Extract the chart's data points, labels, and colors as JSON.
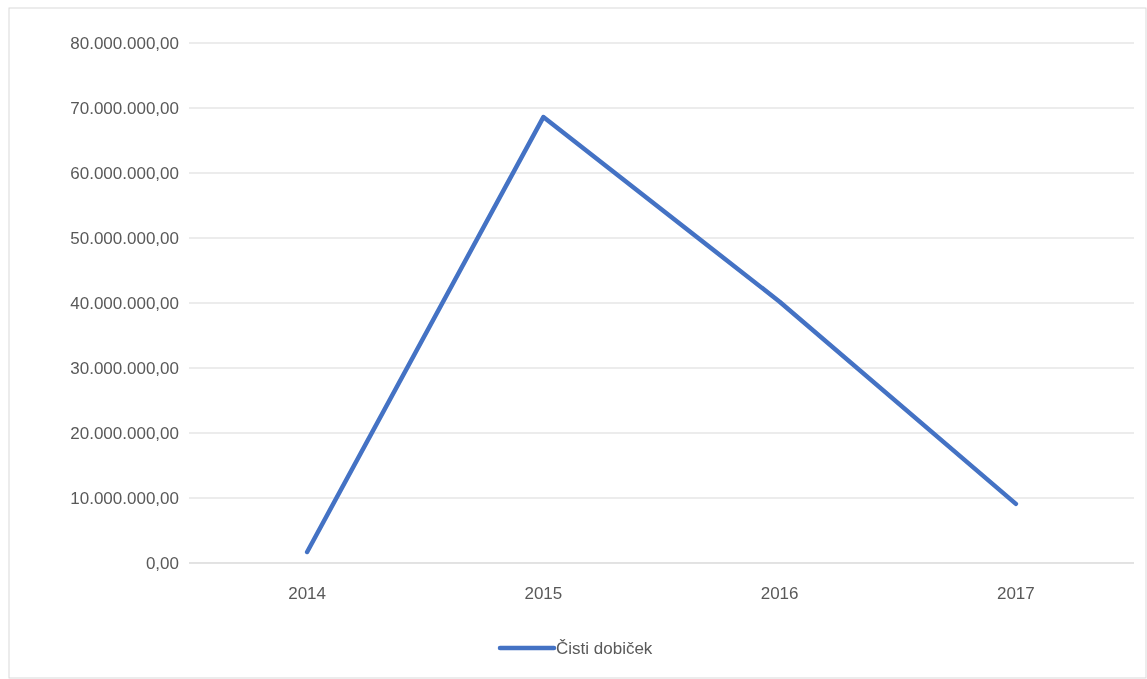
{
  "chart_data": {
    "type": "line",
    "categories": [
      "2014",
      "2015",
      "2016",
      "2017"
    ],
    "series": [
      {
        "name": "Čisti dobiček",
        "color": "#4472c4",
        "values": [
          1700000,
          68600000,
          40200000,
          9100000
        ]
      }
    ],
    "ylim": [
      0,
      80000000
    ],
    "yticks": [
      {
        "value": 0,
        "label": "0,00"
      },
      {
        "value": 10000000,
        "label": "10.000.000,00"
      },
      {
        "value": 20000000,
        "label": "20.000.000,00"
      },
      {
        "value": 30000000,
        "label": "30.000.000,00"
      },
      {
        "value": 40000000,
        "label": "40.000.000,00"
      },
      {
        "value": 50000000,
        "label": "50.000.000,00"
      },
      {
        "value": 60000000,
        "label": "60.000.000,00"
      },
      {
        "value": 70000000,
        "label": "70.000.000,00"
      },
      {
        "value": 80000000,
        "label": "80.000.000,00"
      }
    ],
    "grid": "y",
    "legend": "bottom",
    "marker": "none",
    "line_style": "solid"
  }
}
